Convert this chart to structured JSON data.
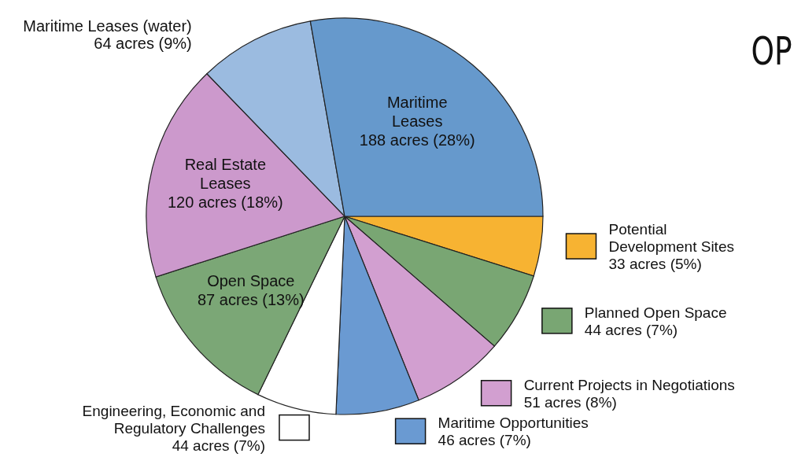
{
  "chart_data": {
    "type": "pie",
    "title": "OP",
    "categories": [
      "Potential Development Sites",
      "Planned Open Space",
      "Current Projects in Negotiations",
      "Maritime Opportunities",
      "Engineering, Economic and Regulatory Challenges",
      "Open Space",
      "Real Estate Leases",
      "Maritime Leases (water)",
      "Maritime Leases"
    ],
    "values": [
      33,
      44,
      51,
      46,
      44,
      87,
      120,
      64,
      188
    ],
    "value_labels": [
      "33 acres (5%)",
      "44 acres (7%)",
      "51 acres (8%)",
      "46 acres (7%)",
      "44 acres (7%)",
      "87 acres (13%)",
      "120 acres (18%)",
      "64 acres (9%)",
      "188 acres (28%)"
    ],
    "colors": [
      "#f7b332",
      "#79a673",
      "#d29fd0",
      "#6a9ad2",
      "#ffffff",
      "#7ba776",
      "#cc99cc",
      "#9bbbe0",
      "#6699cc"
    ],
    "legend": "right"
  }
}
